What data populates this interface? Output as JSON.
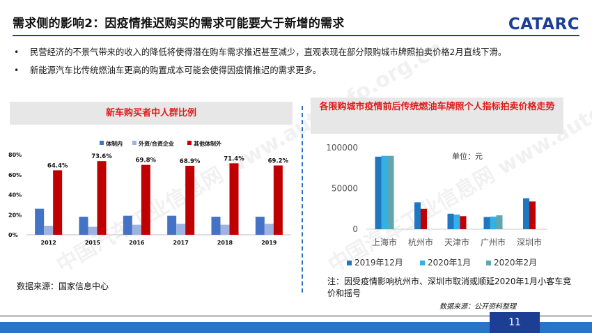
{
  "slide": {
    "title": "需求侧的影响2：因疫情推迟购买的需求可能要大于新增的需求",
    "logo_text": "CATARC",
    "page_number": "11",
    "watermark": "中国汽车工业信息网 www.autoinfo.org.cn"
  },
  "bullets": [
    "民营经济的不景气带来的收入的降低将使得潜在购车需求推迟甚至减少，直观表现在部分限购城市牌照拍卖价格2月直线下滑。",
    "新能源汽车比传统燃油车更高的购置成本可能会使得因疫情推迟的需求更多。"
  ],
  "left_panel": {
    "source": "数据来源：国家信息中心"
  },
  "right_panel": {
    "unit": "单位：元",
    "note": "注：因受疫情影响杭州市、深圳市取消或顺延2020年1月小客车竞价和摇号",
    "source": "数据来源：公开资料整理"
  },
  "colors": {
    "accent_red": "#e01a1a",
    "brand_blue": "#1c3f94",
    "footer_blue": "#2874c6"
  },
  "chart_data": [
    {
      "type": "bar",
      "title": "新车购买者中人群比例",
      "categories": [
        "2012",
        "2015",
        "2016",
        "2017",
        "2018",
        "2019"
      ],
      "series": [
        {
          "name": "体制内",
          "color": "#4472c4",
          "values": [
            26,
            18,
            19,
            19,
            18,
            18
          ]
        },
        {
          "name": "外资/合资企业",
          "color": "#9eb3e0",
          "values": [
            9,
            8,
            10,
            11,
            10,
            11
          ]
        },
        {
          "name": "其他体制外",
          "color": "#c00000",
          "values": [
            64.4,
            73.6,
            69.8,
            68.9,
            71.4,
            69.2
          ],
          "labels": [
            "64.4%",
            "73.6%",
            "69.8%",
            "68.9%",
            "71.4%",
            "69.2%"
          ]
        }
      ],
      "ylim": [
        0,
        80
      ],
      "yticks": [
        "0%",
        "20%",
        "40%",
        "60%",
        "80%"
      ],
      "grid": false,
      "legend": "top"
    },
    {
      "type": "bar",
      "title": "各限购城市疫情前后传统燃油车牌照个人指标拍卖价格走势",
      "categories": [
        "上海市",
        "杭州市",
        "天津市",
        "广州市",
        "深圳市"
      ],
      "series": [
        {
          "name": "2019年12月",
          "color": "#1f77c0",
          "values": [
            89000,
            33000,
            19000,
            15000,
            38000
          ]
        },
        {
          "name": "2020年1月",
          "color": "#33b1e6",
          "values": [
            90000,
            null,
            18000,
            15500,
            null
          ]
        },
        {
          "name": "2020年2月",
          "color": "#5fa7ad",
          "values": [
            90000,
            null,
            null,
            17000,
            null
          ]
        },
        {
          "name": "",
          "color": "#c00000",
          "values": [
            null,
            25000,
            16000,
            null,
            34000
          ]
        }
      ],
      "ylim": [
        0,
        100000
      ],
      "yticks": [
        "0",
        "50000",
        "100000"
      ],
      "grid": false,
      "legend": "bottom"
    }
  ]
}
